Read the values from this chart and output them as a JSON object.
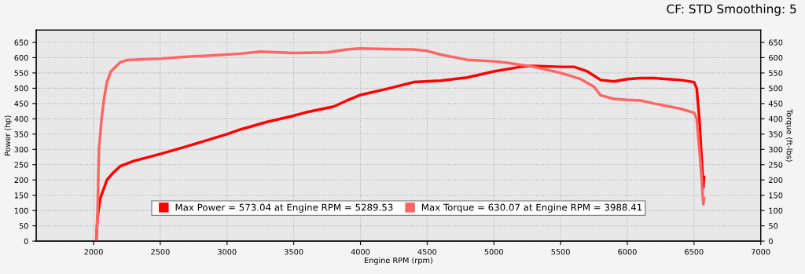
{
  "chart_data": {
    "type": "line",
    "xlabel": "Engine RPM (rpm)",
    "ylabel": "Power (hp)",
    "y2label": "Torque (ft-lbs)",
    "annotations": [
      "CF: STD Smoothing: 5"
    ],
    "xlim": [
      1570,
      7000
    ],
    "xticks": [
      2000,
      2500,
      3000,
      3500,
      4000,
      4500,
      5000,
      5500,
      6000,
      6500,
      7000
    ],
    "ylim": [
      0,
      690
    ],
    "yticks": [
      0,
      50,
      100,
      150,
      200,
      250,
      300,
      350,
      400,
      450,
      500,
      550,
      600,
      650
    ],
    "y2lim": [
      0,
      690
    ],
    "y2ticks": [
      0,
      50,
      100,
      150,
      200,
      250,
      300,
      350,
      400,
      450,
      500,
      550,
      600,
      650
    ],
    "grid": true,
    "legend": "bottom",
    "line_style": "solid",
    "series": [
      {
        "name": "Max Power = 573.04 at Engine RPM = 5289.53",
        "color": "#ff0000",
        "x": [
          2020,
          2030,
          2050,
          2100,
          2150,
          2200,
          2300,
          2500,
          2700,
          3000,
          3100,
          3300,
          3500,
          3600,
          3800,
          3900,
          4000,
          4200,
          4400,
          4600,
          4800,
          5000,
          5200,
          5290,
          5500,
          5600,
          5700,
          5800,
          5900,
          6000,
          6100,
          6200,
          6300,
          6400,
          6500,
          6520,
          6540,
          6560,
          6570,
          6575
        ],
        "values": [
          0,
          80,
          140,
          200,
          225,
          245,
          262,
          285,
          310,
          350,
          365,
          390,
          410,
          422,
          440,
          460,
          478,
          498,
          520,
          525,
          535,
          555,
          570,
          573,
          570,
          570,
          555,
          527,
          522,
          530,
          533,
          533,
          530,
          527,
          520,
          500,
          400,
          250,
          175,
          210
        ]
      },
      {
        "name": "Max Torque = 630.07 at Engine RPM = 3988.41",
        "color": "#ff6666",
        "axis": "y2",
        "x": [
          2020,
          2030,
          2040,
          2060,
          2080,
          2100,
          2130,
          2200,
          2250,
          2500,
          2700,
          3000,
          3100,
          3250,
          3500,
          3750,
          3900,
          3988,
          4200,
          4400,
          4500,
          4600,
          4800,
          5000,
          5100,
          5300,
          5500,
          5650,
          5750,
          5800,
          5900,
          6000,
          6100,
          6200,
          6400,
          6500,
          6520,
          6550,
          6570,
          6575
        ],
        "values": [
          0,
          100,
          300,
          400,
          470,
          520,
          555,
          585,
          592,
          597,
          603,
          610,
          613,
          620,
          615,
          617,
          627,
          630,
          628,
          627,
          622,
          610,
          593,
          588,
          583,
          570,
          550,
          530,
          505,
          477,
          465,
          462,
          460,
          450,
          433,
          420,
          400,
          250,
          120,
          140
        ]
      }
    ]
  }
}
